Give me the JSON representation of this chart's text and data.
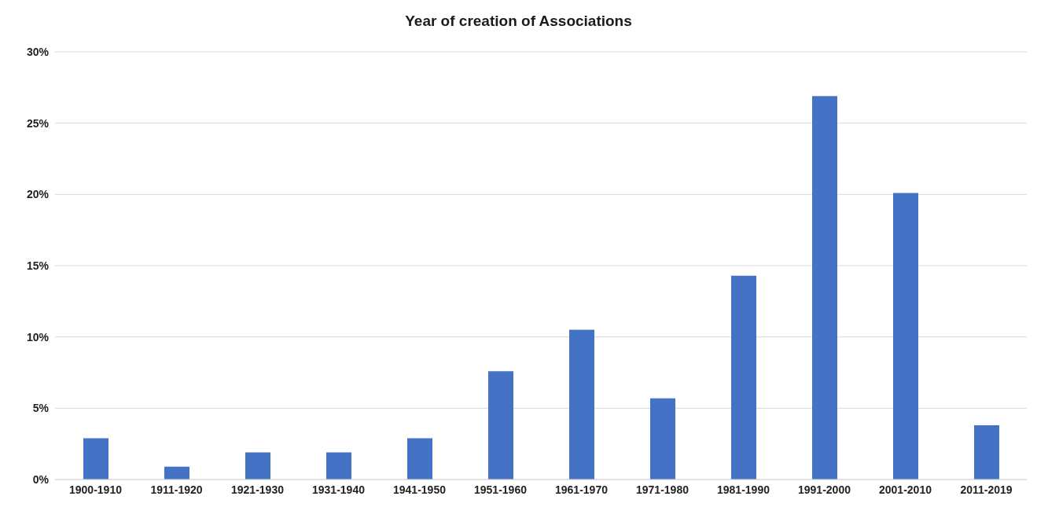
{
  "chart_data": {
    "type": "bar",
    "title": "Year of creation of Associations",
    "categories": [
      "1900-1910",
      "1911-1920",
      "1921-1930",
      "1931-1940",
      "1941-1950",
      "1951-1960",
      "1961-1970",
      "1971-1980",
      "1981-1990",
      "1991-2000",
      "2001-2010",
      "2011-2019"
    ],
    "values": [
      2.9,
      0.9,
      1.9,
      1.9,
      2.9,
      7.6,
      10.5,
      5.7,
      14.3,
      26.9,
      20.1,
      3.8
    ],
    "color": "#4472c4",
    "ylim": [
      0,
      30
    ],
    "yticks": [
      {
        "value": 0,
        "label": "0%"
      },
      {
        "value": 5,
        "label": "5%"
      },
      {
        "value": 10,
        "label": "10%"
      },
      {
        "value": 15,
        "label": "15%"
      },
      {
        "value": 20,
        "label": "20%"
      },
      {
        "value": 25,
        "label": "25%"
      },
      {
        "value": 30,
        "label": "30%"
      }
    ],
    "grid": "y"
  }
}
